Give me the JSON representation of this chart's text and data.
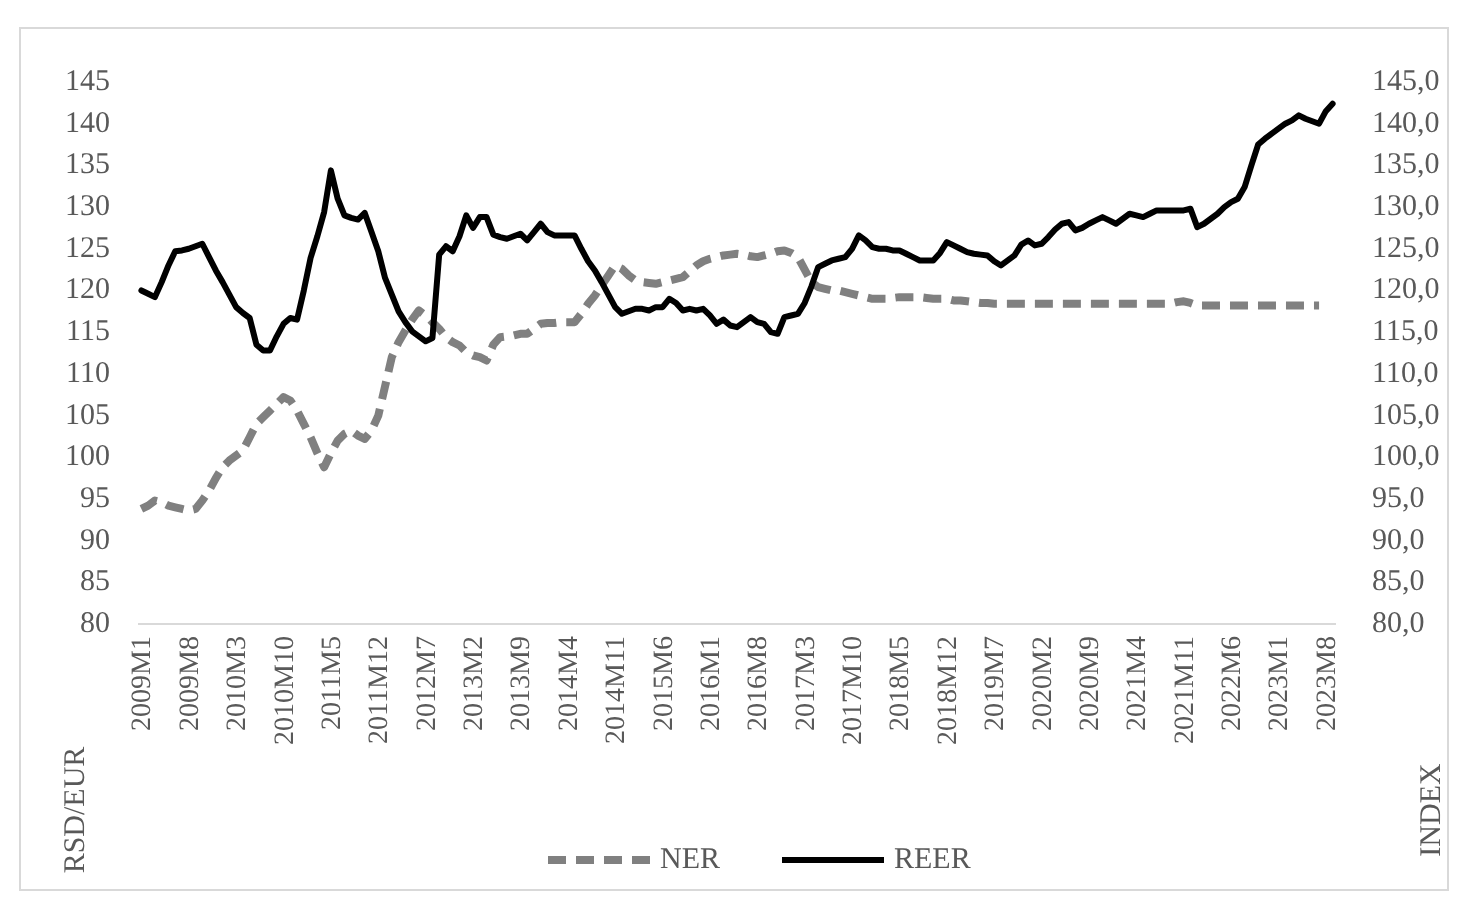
{
  "chart_data": {
    "type": "line",
    "categories": [
      "2009M1",
      null,
      null,
      null,
      null,
      null,
      null,
      "2009M8",
      null,
      null,
      null,
      null,
      null,
      null,
      "2010M3",
      null,
      null,
      null,
      null,
      null,
      null,
      "2010M10",
      null,
      null,
      null,
      null,
      null,
      null,
      "2011M5",
      null,
      null,
      null,
      null,
      null,
      null,
      "2011M12",
      null,
      null,
      null,
      null,
      null,
      null,
      "2012M7",
      null,
      null,
      null,
      null,
      null,
      null,
      "2013M2",
      null,
      null,
      null,
      null,
      null,
      null,
      "2013M9",
      null,
      null,
      null,
      null,
      null,
      null,
      "2014M4",
      null,
      null,
      null,
      null,
      null,
      null,
      "2014M11",
      null,
      null,
      null,
      null,
      null,
      null,
      "2015M6",
      null,
      null,
      null,
      null,
      null,
      null,
      "2016M1",
      null,
      null,
      null,
      null,
      null,
      null,
      "2016M8",
      null,
      null,
      null,
      null,
      null,
      null,
      "2017M3",
      null,
      null,
      null,
      null,
      null,
      null,
      "2017M10",
      null,
      null,
      null,
      null,
      null,
      null,
      "2018M5",
      null,
      null,
      null,
      null,
      null,
      null,
      "2018M12",
      null,
      null,
      null,
      null,
      null,
      null,
      "2019M7",
      null,
      null,
      null,
      null,
      null,
      null,
      "2020M2",
      null,
      null,
      null,
      null,
      null,
      null,
      "2020M9",
      null,
      null,
      null,
      null,
      null,
      null,
      "2021M4",
      null,
      null,
      null,
      null,
      null,
      null,
      "2021M11",
      null,
      null,
      null,
      null,
      null,
      null,
      "2022M6",
      null,
      null,
      null,
      null,
      null,
      null,
      "2023M1",
      null,
      null,
      null,
      null,
      null,
      null,
      "2023M8",
      null
    ],
    "series": [
      {
        "name": "NER",
        "color": "#808080",
        "line_style": "dashed",
        "values": [
          93.8,
          94.2,
          94.8,
          94.6,
          94.2,
          94,
          93.8,
          93.6,
          93.8,
          94.8,
          96,
          97.5,
          98.8,
          99.6,
          100.2,
          100.8,
          102.4,
          104,
          104.8,
          105.6,
          106.4,
          107.2,
          106.8,
          105.6,
          104,
          102.4,
          100.5,
          98.8,
          100.5,
          102,
          102.8,
          103.2,
          102.6,
          102.2,
          103.2,
          105,
          108.5,
          112,
          113.8,
          115.2,
          116.5,
          117.6,
          117,
          116.2,
          115.4,
          114.4,
          113.8,
          113.4,
          112.6,
          112.2,
          112,
          111.6,
          113.5,
          114.4,
          114.5,
          114.6,
          114.8,
          114.8,
          115.4,
          116,
          116.1,
          116.1,
          116.2,
          116.2,
          116.2,
          117.2,
          118.4,
          119.4,
          120.6,
          121.8,
          123,
          122.6,
          121.8,
          121.2,
          121,
          120.9,
          120.8,
          121,
          121.2,
          121.4,
          121.6,
          122.3,
          123,
          123.5,
          123.8,
          124,
          124.2,
          124.3,
          124.4,
          124.3,
          124.1,
          124,
          124.2,
          124.4,
          124.7,
          124.8,
          124.5,
          124,
          122.5,
          121,
          120.4,
          120.2,
          120,
          120,
          119.8,
          119.6,
          119.4,
          119.2,
          119,
          119,
          119,
          119.1,
          119.2,
          119.2,
          119.2,
          119.2,
          119.1,
          119,
          119,
          119,
          118.8,
          118.8,
          118.7,
          118.6,
          118.5,
          118.5,
          118.4,
          118.4,
          118.4,
          118.4,
          118.4,
          118.4,
          118.4,
          118.4,
          118.4,
          118.4,
          118.4,
          118.4,
          118.4,
          118.4,
          118.4,
          118.4,
          118.4,
          118.4,
          118.4,
          118.4,
          118.4,
          118.4,
          118.4,
          118.4,
          118.4,
          118.4,
          118.4,
          118.6,
          118.7,
          118.5,
          118.2,
          118.2,
          118.2,
          118.2,
          118.2,
          118.2,
          118.2,
          118.2,
          118.2,
          118.2,
          118.2,
          118.2,
          118.2,
          118.2,
          118.2,
          118.2,
          118.2,
          118.2,
          118.2,
          null,
          null
        ]
      },
      {
        "name": "REER",
        "color": "#000000",
        "line_style": "solid",
        "values": [
          120,
          119.6,
          119.2,
          121,
          123,
          124.7,
          124.8,
          125,
          125.3,
          125.6,
          124,
          122.4,
          121,
          119.5,
          118,
          117.3,
          116.7,
          113.5,
          112.8,
          112.8,
          114.5,
          116,
          116.7,
          116.5,
          120,
          123.9,
          126.5,
          129.4,
          134.4,
          131,
          129,
          128.7,
          128.5,
          129.3,
          127,
          124.7,
          121.5,
          119.5,
          117.5,
          116.2,
          115.1,
          114.5,
          113.9,
          114.3,
          124.3,
          125.3,
          124.7,
          126.5,
          129,
          127.5,
          128.8,
          128.8,
          126.7,
          126.4,
          126.2,
          126.5,
          126.8,
          126,
          127,
          128,
          127,
          126.6,
          126.6,
          126.6,
          126.6,
          125,
          123.5,
          122.4,
          121,
          119.5,
          118,
          117.2,
          117.5,
          117.8,
          117.8,
          117.6,
          118,
          118,
          119,
          118.5,
          117.6,
          117.8,
          117.6,
          117.8,
          117,
          116,
          116.5,
          115.8,
          115.6,
          116.2,
          116.8,
          116.2,
          116,
          115,
          114.8,
          116.8,
          117,
          117.2,
          118.5,
          120.5,
          122.8,
          123.2,
          123.6,
          123.8,
          124,
          125,
          126.6,
          126,
          125.2,
          125,
          125,
          124.8,
          124.8,
          124.4,
          124,
          123.6,
          123.6,
          123.6,
          124.5,
          125.8,
          125.4,
          125,
          124.6,
          124.4,
          124.3,
          124.2,
          123.5,
          123,
          123.6,
          124.2,
          125.5,
          126,
          125.4,
          125.6,
          126.4,
          127.3,
          128,
          128.2,
          127.2,
          127.5,
          128,
          128.4,
          128.8,
          128.4,
          128,
          128.6,
          129.2,
          129,
          128.8,
          129.2,
          129.6,
          129.6,
          129.6,
          129.6,
          129.6,
          129.8,
          127.6,
          128,
          128.6,
          129.2,
          130,
          130.6,
          131,
          132.4,
          135,
          137.5,
          138.2,
          138.8,
          139.4,
          140,
          140.4,
          141,
          140.6,
          140.3,
          140,
          141.5,
          142.4
        ]
      }
    ],
    "ylim": [
      80,
      145
    ],
    "yticks": [
      80,
      85,
      90,
      95,
      100,
      105,
      110,
      115,
      120,
      125,
      130,
      135,
      140,
      145
    ],
    "y2lim": [
      80,
      145
    ],
    "y2ticks": [
      {
        "value": 80,
        "label": "80,0"
      },
      {
        "value": 85,
        "label": "85,0"
      },
      {
        "value": 90,
        "label": "90,0"
      },
      {
        "value": 95,
        "label": "95,0"
      },
      {
        "value": 100,
        "label": "100,0"
      },
      {
        "value": 105,
        "label": "105,0"
      },
      {
        "value": 110,
        "label": "110,0"
      },
      {
        "value": 115,
        "label": "115,0"
      },
      {
        "value": 120,
        "label": "120,0"
      },
      {
        "value": 125,
        "label": "125,0"
      },
      {
        "value": 130,
        "label": "130,0"
      },
      {
        "value": 135,
        "label": "135,0"
      },
      {
        "value": 140,
        "label": "140,0"
      },
      {
        "value": 145,
        "label": "145,0"
      }
    ],
    "ylabel": "RSD/EUR",
    "y2label": "INDEX",
    "legend": "bottom"
  }
}
